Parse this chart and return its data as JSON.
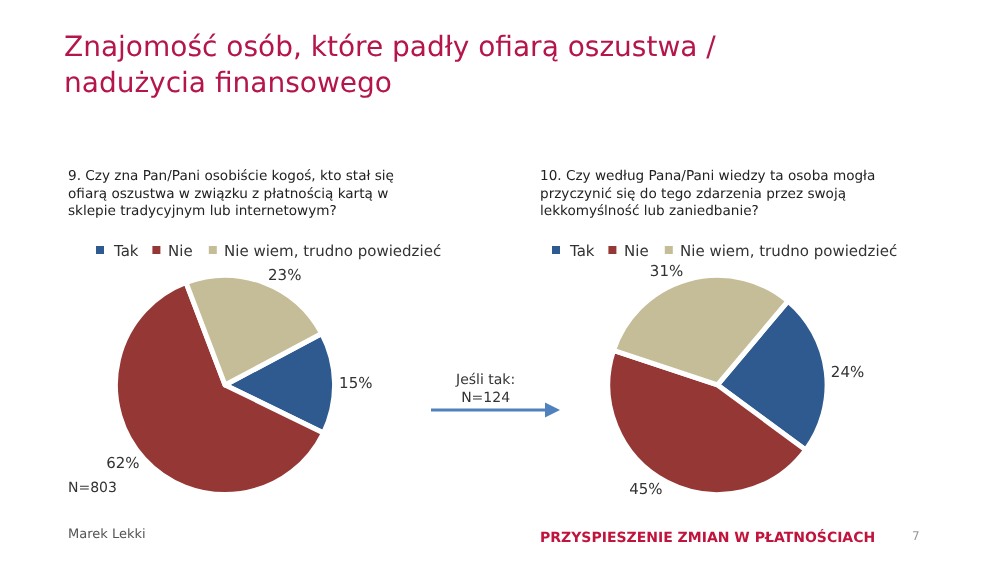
{
  "chart_data": [
    {
      "type": "pie",
      "title": "9. Czy zna Pan/Pani osobiście kogoś, kto stał się ofiarą oszustwa w związku z płatnością kartą w sklepie tradycyjnym lub internetowym?",
      "categories": [
        "Tak",
        "Nie",
        "Nie wiem, trudno powiedzieć"
      ],
      "values": [
        15,
        62,
        23
      ],
      "colors": [
        "#2f5a8f",
        "#953735",
        "#c4bd97"
      ],
      "value_labels": [
        "15%",
        "62%",
        "23%"
      ],
      "legend": "top",
      "annotations": [
        "Znajomość osób, które padły ofiarą oszustwa / nadużycia finansowego",
        "N=803",
        "Marek Lekki"
      ]
    },
    {
      "type": "pie",
      "title": "10. Czy według Pana/Pani wiedzy ta osoba mogła przyczynić się do tego zdarzenia przez swoją lekkomyślność lub zaniedbanie?",
      "categories": [
        "Tak",
        "Nie",
        "Nie wiem, trudno powiedzieć"
      ],
      "values": [
        24,
        45,
        31
      ],
      "colors": [
        "#2f5a8f",
        "#953735",
        "#c4bd97"
      ],
      "value_labels": [
        "24%",
        "45%",
        "31%"
      ],
      "legend": "top",
      "annotations": [
        "Jeśli tak:\nN=124",
        "PRZYSPIESZENIE ZMIAN W PŁATNOŚCIACH",
        "7"
      ]
    }
  ]
}
